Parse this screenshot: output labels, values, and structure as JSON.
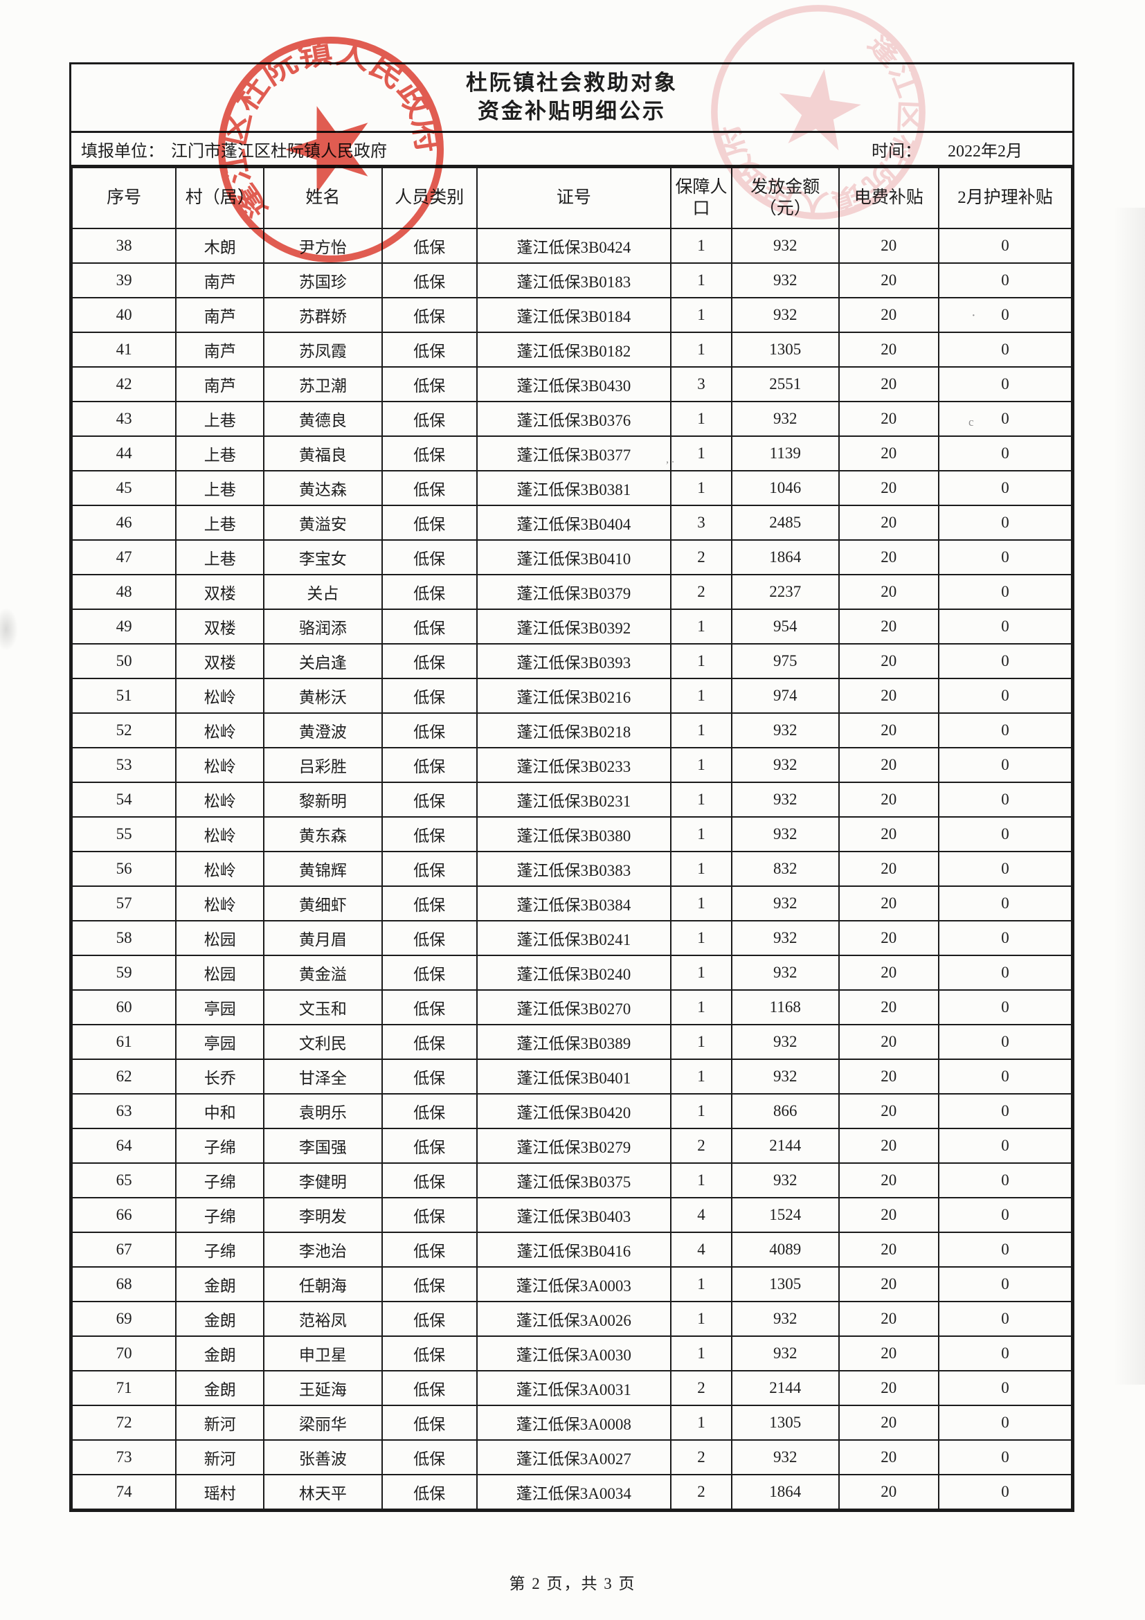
{
  "title": {
    "line1": "杜阮镇社会救助对象",
    "line2": "资金补贴明细公示"
  },
  "meta": {
    "reporting_unit_label": "填报单位：",
    "reporting_unit_value": "江门市蓬江区杜阮镇人民政府",
    "time_label": "时间：",
    "time_value": "2022年2月"
  },
  "stamp": {
    "seal_text": "蓬江区杜阮镇人民政府",
    "color_strong": "#dd3a2d",
    "color_faint": "#e2737b"
  },
  "table": {
    "headers": [
      "序号",
      "村（居）",
      "姓名",
      "人员类别",
      "证号",
      "保障人口",
      "发放金额（元）",
      "电费补贴",
      "2月护理补贴"
    ],
    "rows": [
      [
        "38",
        "木朗",
        "尹方怡",
        "低保",
        "蓬江低保3B0424",
        "1",
        "932",
        "20",
        "0"
      ],
      [
        "39",
        "南芦",
        "苏国珍",
        "低保",
        "蓬江低保3B0183",
        "1",
        "932",
        "20",
        "0"
      ],
      [
        "40",
        "南芦",
        "苏群娇",
        "低保",
        "蓬江低保3B0184",
        "1",
        "932",
        "20",
        "0"
      ],
      [
        "41",
        "南芦",
        "苏凤霞",
        "低保",
        "蓬江低保3B0182",
        "1",
        "1305",
        "20",
        "0"
      ],
      [
        "42",
        "南芦",
        "苏卫潮",
        "低保",
        "蓬江低保3B0430",
        "3",
        "2551",
        "20",
        "0"
      ],
      [
        "43",
        "上巷",
        "黄德良",
        "低保",
        "蓬江低保3B0376",
        "1",
        "932",
        "20",
        "0"
      ],
      [
        "44",
        "上巷",
        "黄福良",
        "低保",
        "蓬江低保3B0377",
        "1",
        "1139",
        "20",
        "0"
      ],
      [
        "45",
        "上巷",
        "黄达森",
        "低保",
        "蓬江低保3B0381",
        "1",
        "1046",
        "20",
        "0"
      ],
      [
        "46",
        "上巷",
        "黄溢安",
        "低保",
        "蓬江低保3B0404",
        "3",
        "2485",
        "20",
        "0"
      ],
      [
        "47",
        "上巷",
        "李宝女",
        "低保",
        "蓬江低保3B0410",
        "2",
        "1864",
        "20",
        "0"
      ],
      [
        "48",
        "双楼",
        "关占",
        "低保",
        "蓬江低保3B0379",
        "2",
        "2237",
        "20",
        "0"
      ],
      [
        "49",
        "双楼",
        "骆润添",
        "低保",
        "蓬江低保3B0392",
        "1",
        "954",
        "20",
        "0"
      ],
      [
        "50",
        "双楼",
        "关启逢",
        "低保",
        "蓬江低保3B0393",
        "1",
        "975",
        "20",
        "0"
      ],
      [
        "51",
        "松岭",
        "黄彬沃",
        "低保",
        "蓬江低保3B0216",
        "1",
        "974",
        "20",
        "0"
      ],
      [
        "52",
        "松岭",
        "黄澄波",
        "低保",
        "蓬江低保3B0218",
        "1",
        "932",
        "20",
        "0"
      ],
      [
        "53",
        "松岭",
        "吕彩胜",
        "低保",
        "蓬江低保3B0233",
        "1",
        "932",
        "20",
        "0"
      ],
      [
        "54",
        "松岭",
        "黎新明",
        "低保",
        "蓬江低保3B0231",
        "1",
        "932",
        "20",
        "0"
      ],
      [
        "55",
        "松岭",
        "黄东森",
        "低保",
        "蓬江低保3B0380",
        "1",
        "932",
        "20",
        "0"
      ],
      [
        "56",
        "松岭",
        "黄锦辉",
        "低保",
        "蓬江低保3B0383",
        "1",
        "832",
        "20",
        "0"
      ],
      [
        "57",
        "松岭",
        "黄细虾",
        "低保",
        "蓬江低保3B0384",
        "1",
        "932",
        "20",
        "0"
      ],
      [
        "58",
        "松园",
        "黄月眉",
        "低保",
        "蓬江低保3B0241",
        "1",
        "932",
        "20",
        "0"
      ],
      [
        "59",
        "松园",
        "黄金溢",
        "低保",
        "蓬江低保3B0240",
        "1",
        "932",
        "20",
        "0"
      ],
      [
        "60",
        "亭园",
        "文玉和",
        "低保",
        "蓬江低保3B0270",
        "1",
        "1168",
        "20",
        "0"
      ],
      [
        "61",
        "亭园",
        "文利民",
        "低保",
        "蓬江低保3B0389",
        "1",
        "932",
        "20",
        "0"
      ],
      [
        "62",
        "长乔",
        "甘泽全",
        "低保",
        "蓬江低保3B0401",
        "1",
        "932",
        "20",
        "0"
      ],
      [
        "63",
        "中和",
        "袁明乐",
        "低保",
        "蓬江低保3B0420",
        "1",
        "866",
        "20",
        "0"
      ],
      [
        "64",
        "子绵",
        "李国强",
        "低保",
        "蓬江低保3B0279",
        "2",
        "2144",
        "20",
        "0"
      ],
      [
        "65",
        "子绵",
        "李健明",
        "低保",
        "蓬江低保3B0375",
        "1",
        "932",
        "20",
        "0"
      ],
      [
        "66",
        "子绵",
        "李明发",
        "低保",
        "蓬江低保3B0403",
        "4",
        "1524",
        "20",
        "0"
      ],
      [
        "67",
        "子绵",
        "李池治",
        "低保",
        "蓬江低保3B0416",
        "4",
        "4089",
        "20",
        "0"
      ],
      [
        "68",
        "金朗",
        "任朝海",
        "低保",
        "蓬江低保3A0003",
        "1",
        "1305",
        "20",
        "0"
      ],
      [
        "69",
        "金朗",
        "范裕凤",
        "低保",
        "蓬江低保3A0026",
        "1",
        "932",
        "20",
        "0"
      ],
      [
        "70",
        "金朗",
        "申卫星",
        "低保",
        "蓬江低保3A0030",
        "1",
        "932",
        "20",
        "0"
      ],
      [
        "71",
        "金朗",
        "王延海",
        "低保",
        "蓬江低保3A0031",
        "2",
        "2144",
        "20",
        "0"
      ],
      [
        "72",
        "新河",
        "梁丽华",
        "低保",
        "蓬江低保3A0008",
        "1",
        "1305",
        "20",
        "0"
      ],
      [
        "73",
        "新河",
        "张善波",
        "低保",
        "蓬江低保3A0027",
        "2",
        "932",
        "20",
        "0"
      ],
      [
        "74",
        "瑶村",
        "林天平",
        "低保",
        "蓬江低保3A0034",
        "2",
        "1864",
        "20",
        "0"
      ]
    ],
    "column_keys": [
      "index",
      "village",
      "name",
      "category",
      "cert-no",
      "population",
      "amount",
      "electric-subsidy",
      "care-subsidy"
    ]
  },
  "footer": {
    "page_text": "第 2 页，共 3 页"
  }
}
